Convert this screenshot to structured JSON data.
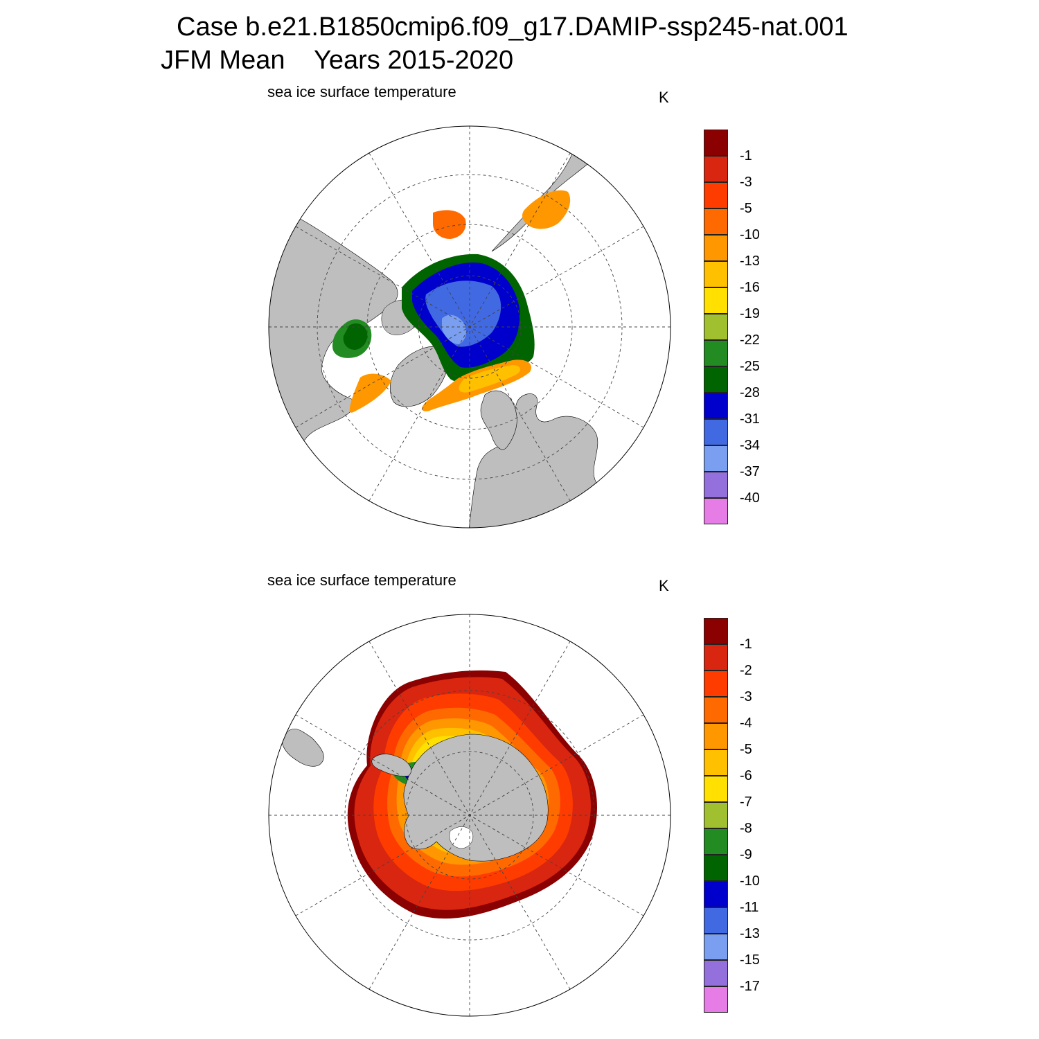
{
  "header": {
    "line1": "Case b.e21.B1850cmip6.f09_g17.DAMIP-ssp245-nat.001",
    "line2": "JFM Mean    Years 2015-2020"
  },
  "panels": [
    {
      "id": "north",
      "title": "sea ice surface temperature",
      "units": "K",
      "colorbar": {
        "colors": [
          "#8b0000",
          "#d82610",
          "#ff3c00",
          "#ff6a00",
          "#ff9700",
          "#ffc000",
          "#ffe000",
          "#a0c030",
          "#228b22",
          "#006400",
          "#0000cd",
          "#4169e1",
          "#7a9ff0",
          "#9370db",
          "#e67ce6"
        ],
        "labels": [
          "-1",
          "-3",
          "-5",
          "-10",
          "-13",
          "-16",
          "-19",
          "-22",
          "-25",
          "-28",
          "-31",
          "-34",
          "-37",
          "-40"
        ]
      }
    },
    {
      "id": "south",
      "title": "sea ice surface temperature",
      "units": "K",
      "colorbar": {
        "colors": [
          "#8b0000",
          "#d82610",
          "#ff3c00",
          "#ff6a00",
          "#ff9700",
          "#ffc000",
          "#ffe000",
          "#a0c030",
          "#228b22",
          "#006400",
          "#0000cd",
          "#4169e1",
          "#7a9ff0",
          "#9370db",
          "#e67ce6"
        ],
        "labels": [
          "-1",
          "-2",
          "-3",
          "-4",
          "-5",
          "-6",
          "-7",
          "-8",
          "-9",
          "-10",
          "-11",
          "-13",
          "-15",
          "-17"
        ]
      }
    }
  ],
  "colors": {
    "land": "#bebebe",
    "ocean": "#ffffff",
    "grid": "#444444"
  }
}
